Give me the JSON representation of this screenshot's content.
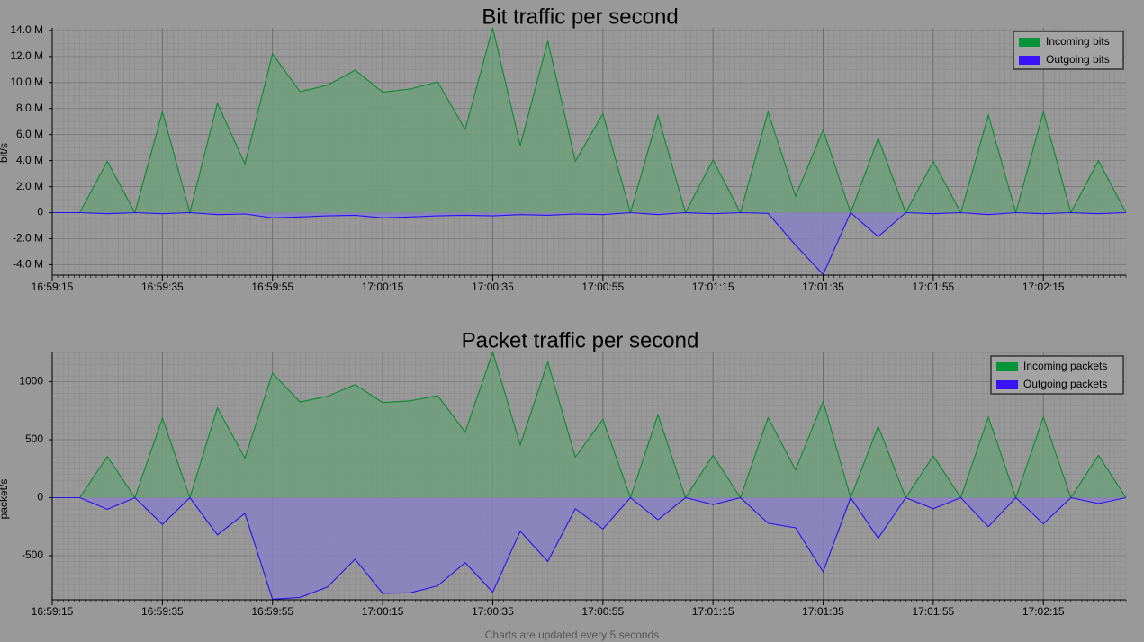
{
  "footer_text": "Charts are updated every 5 seconds",
  "colors": {
    "background": "#999999",
    "incoming_line": "#0a8a2e",
    "incoming_fill": "#6f9d7a",
    "outgoing_line": "#2a10f0",
    "outgoing_fill": "#8a80c2",
    "legend_incoming": "#06933a",
    "legend_outgoing": "#3a12f8"
  },
  "chart_data": [
    {
      "type": "area",
      "title": "Bit traffic per second",
      "ylabel": "bit/s",
      "xlabel": "",
      "ylim": [
        -4800000,
        14200000
      ],
      "yticks": [
        -4000000,
        -2000000,
        0,
        2000000,
        4000000,
        6000000,
        8000000,
        10000000,
        12000000,
        14000000
      ],
      "ytick_labels": [
        "-4.0 M",
        "-2.0 M",
        "0",
        "2.0 M",
        "4.0 M",
        "6.0 M",
        "8.0 M",
        "10.0 M",
        "12.0 M",
        "14.0 M"
      ],
      "xticks": [
        "16:59:15",
        "16:59:35",
        "16:59:55",
        "17:00:15",
        "17:00:35",
        "17:00:55",
        "17:01:15",
        "17:01:35",
        "17:01:55",
        "17:02:15"
      ],
      "grid": true,
      "legend_position": "top-right",
      "x": [
        "16:59:15",
        "16:59:20",
        "16:59:25",
        "16:59:30",
        "16:59:35",
        "16:59:40",
        "16:59:45",
        "16:59:50",
        "16:59:55",
        "17:00:00",
        "17:00:05",
        "17:00:10",
        "17:00:15",
        "17:00:20",
        "17:00:25",
        "17:00:30",
        "17:00:35",
        "17:00:40",
        "17:00:45",
        "17:00:50",
        "17:00:55",
        "17:01:00",
        "17:01:05",
        "17:01:10",
        "17:01:15",
        "17:01:20",
        "17:01:25",
        "17:01:30",
        "17:01:35",
        "17:01:40",
        "17:01:45",
        "17:01:50",
        "17:01:55",
        "17:02:00",
        "17:02:05",
        "17:02:10",
        "17:02:15",
        "17:02:20",
        "17:02:25",
        "17:02:30"
      ],
      "series": [
        {
          "name": "Incoming bits",
          "values": [
            0,
            0,
            3950000,
            0,
            7750000,
            0,
            8400000,
            3750000,
            12200000,
            9300000,
            9800000,
            10950000,
            9250000,
            9500000,
            10050000,
            6400000,
            14200000,
            5150000,
            13200000,
            3950000,
            7600000,
            0,
            7450000,
            0,
            4050000,
            0,
            7750000,
            1250000,
            6350000,
            0,
            5700000,
            0,
            3950000,
            0,
            7500000,
            0,
            7750000,
            0,
            4000000,
            0
          ]
        },
        {
          "name": "Outgoing bits",
          "values": [
            0,
            0,
            -80000,
            0,
            -80000,
            0,
            -150000,
            -100000,
            -400000,
            -330000,
            -250000,
            -200000,
            -400000,
            -330000,
            -250000,
            -200000,
            -250000,
            -150000,
            -200000,
            -100000,
            -150000,
            0,
            -150000,
            0,
            -80000,
            0,
            -50000,
            -2500000,
            -4750000,
            0,
            -1850000,
            0,
            -80000,
            0,
            -150000,
            0,
            -80000,
            0,
            -80000,
            0
          ]
        }
      ]
    },
    {
      "type": "area",
      "title": "Packet traffic per second",
      "ylabel": "packet/s",
      "xlabel": "",
      "ylim": [
        -880,
        1260
      ],
      "yticks": [
        -500,
        0,
        500,
        1000
      ],
      "ytick_labels": [
        "-500",
        "0",
        "500",
        "1000"
      ],
      "xticks": [
        "16:59:15",
        "16:59:35",
        "16:59:55",
        "17:00:15",
        "17:00:35",
        "17:00:55",
        "17:01:15",
        "17:01:35",
        "17:01:55",
        "17:02:15"
      ],
      "grid": true,
      "legend_position": "top-right",
      "x": [
        "16:59:15",
        "16:59:20",
        "16:59:25",
        "16:59:30",
        "16:59:35",
        "16:59:40",
        "16:59:45",
        "16:59:50",
        "16:59:55",
        "17:00:00",
        "17:00:05",
        "17:00:10",
        "17:00:15",
        "17:00:20",
        "17:00:25",
        "17:00:30",
        "17:00:35",
        "17:00:40",
        "17:00:45",
        "17:00:50",
        "17:00:55",
        "17:01:00",
        "17:01:05",
        "17:01:10",
        "17:01:15",
        "17:01:20",
        "17:01:25",
        "17:01:30",
        "17:01:35",
        "17:01:40",
        "17:01:45",
        "17:01:50",
        "17:01:55",
        "17:02:00",
        "17:02:05",
        "17:02:10",
        "17:02:15",
        "17:02:20",
        "17:02:25",
        "17:02:30"
      ],
      "series": [
        {
          "name": "Incoming packets",
          "values": [
            0,
            0,
            355,
            0,
            685,
            0,
            775,
            340,
            1075,
            825,
            875,
            975,
            820,
            835,
            880,
            565,
            1255,
            455,
            1170,
            350,
            675,
            0,
            715,
            0,
            365,
            0,
            690,
            240,
            830,
            0,
            615,
            0,
            360,
            0,
            695,
            0,
            695,
            0,
            365,
            0
          ]
        },
        {
          "name": "Outgoing packets",
          "values": [
            0,
            0,
            -100,
            0,
            -230,
            0,
            -320,
            -135,
            -875,
            -860,
            -770,
            -530,
            -825,
            -820,
            -760,
            -560,
            -815,
            -290,
            -550,
            -95,
            -270,
            0,
            -190,
            0,
            -60,
            0,
            -220,
            -260,
            -640,
            0,
            -350,
            0,
            -95,
            0,
            -250,
            0,
            -225,
            0,
            -50,
            0
          ]
        }
      ]
    }
  ]
}
